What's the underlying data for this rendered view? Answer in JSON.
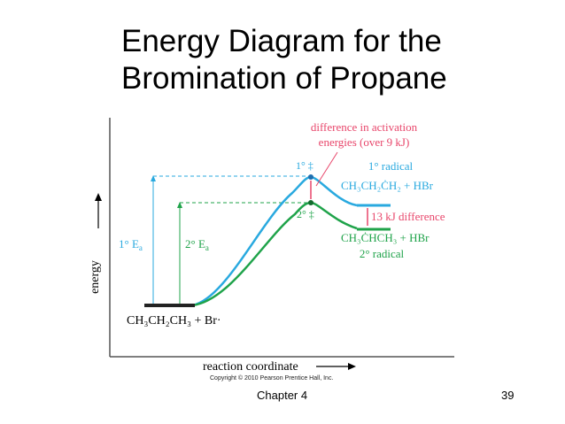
{
  "slide": {
    "title_line1": "Energy Diagram for the",
    "title_line2": "Bromination of Propane",
    "chapter": "Chapter 4",
    "page_number": "39"
  },
  "diagram": {
    "y_axis_label": "energy",
    "x_axis_label": "reaction coordinate",
    "copyright": "Copyright © 2010 Pearson Prentice Hall, Inc.",
    "reactants": "CH₃CH₂CH₃ + Br·",
    "primary_ts": "1° ‡",
    "secondary_ts": "2° ‡",
    "primary_radical_label": "1° radical",
    "primary_product": "CH₃CH₂ĊH₂ + HBr",
    "secondary_product": "CH₃ĊHCH₃ + HBr",
    "secondary_radical_label": "2° radical",
    "activation_difference_line1": "difference in activation",
    "activation_difference_line2": "energies (over 9 kJ)",
    "product_difference": "13 kJ difference",
    "ea_primary": "1° E",
    "ea_secondary": "2° E",
    "ea_subscript": "a"
  },
  "colors": {
    "primary_path": "#29a9df",
    "secondary_path": "#1fa34a",
    "annotation": "#e8466b",
    "reactant_bar": "#222222"
  }
}
